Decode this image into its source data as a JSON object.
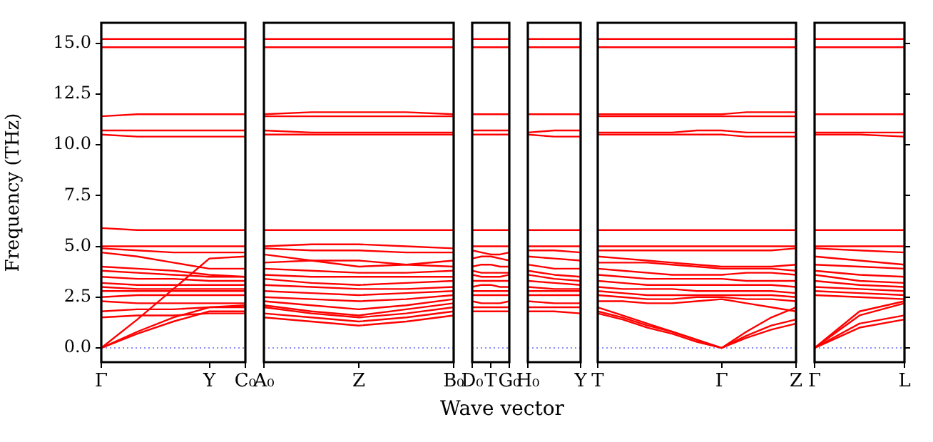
{
  "chart_data": [
    {
      "type": "line",
      "ylabel": "Frequency (THz)",
      "categories": [
        "Γ",
        null,
        null,
        "Y",
        "C₀"
      ],
      "ylim": [
        -0.7,
        16
      ],
      "yticks": [
        {
          "value": 0,
          "label": "0.0"
        },
        {
          "value": 2.5,
          "label": "2.5"
        },
        {
          "value": 5,
          "label": "5.0"
        },
        {
          "value": 7.5,
          "label": "7.5"
        },
        {
          "value": 10,
          "label": "10.0"
        },
        {
          "value": 12.5,
          "label": "12.5"
        },
        {
          "value": 15,
          "label": "15.0"
        }
      ],
      "marker": "none",
      "line_style": "solid",
      "ref_lines": [
        {
          "axis": "y",
          "value": 0,
          "color": "#6666ff",
          "line_style": "dotted"
        }
      ],
      "series": [
        {
          "color": "#ff0000",
          "values": [
            15.2,
            15.2,
            15.2,
            15.2,
            15.2
          ]
        },
        {
          "color": "#ff0000",
          "values": [
            14.8,
            14.8,
            14.8,
            14.8,
            14.8
          ]
        },
        {
          "color": "#ff0000",
          "values": [
            11.4,
            11.5,
            11.5,
            11.5,
            11.5
          ]
        },
        {
          "color": "#ff0000",
          "values": [
            10.7,
            10.7,
            10.7,
            10.7,
            10.7
          ]
        },
        {
          "color": "#ff0000",
          "values": [
            10.5,
            10.4,
            10.4,
            10.4,
            10.4
          ]
        },
        {
          "color": "#ff0000",
          "values": [
            5.9,
            5.8,
            5.8,
            5.8,
            5.8
          ]
        },
        {
          "color": "#ff0000",
          "values": [
            5.0,
            5.0,
            5.0,
            5.0,
            5.0
          ]
        },
        {
          "color": "#ff0000",
          "values": [
            4.9,
            4.8,
            4.7,
            4.7,
            4.7
          ]
        },
        {
          "color": "#ff0000",
          "values": [
            4.7,
            4.5,
            4.2,
            3.9,
            3.9
          ]
        },
        {
          "color": "#ff0000",
          "values": [
            4.0,
            3.9,
            3.8,
            3.6,
            3.5
          ]
        },
        {
          "color": "#ff0000",
          "values": [
            3.8,
            3.7,
            3.6,
            3.5,
            3.5
          ]
        },
        {
          "color": "#ff0000",
          "values": [
            3.5,
            3.4,
            3.4,
            3.3,
            3.3
          ]
        },
        {
          "color": "#ff0000",
          "values": [
            3.2,
            3.1,
            3.1,
            3.1,
            3.1
          ]
        },
        {
          "color": "#ff0000",
          "values": [
            3.0,
            2.9,
            2.9,
            2.9,
            2.9
          ]
        },
        {
          "color": "#ff0000",
          "values": [
            2.8,
            2.8,
            2.8,
            2.8,
            2.8
          ]
        },
        {
          "color": "#ff0000",
          "values": [
            2.5,
            2.6,
            2.6,
            2.6,
            2.6
          ]
        },
        {
          "color": "#ff0000",
          "values": [
            2.3,
            2.2,
            2.2,
            2.2,
            2.2
          ]
        },
        {
          "color": "#ff0000",
          "values": [
            1.8,
            1.9,
            1.9,
            2.0,
            2.0
          ]
        },
        {
          "color": "#ff0000",
          "values": [
            1.5,
            1.6,
            1.6,
            1.7,
            1.7
          ]
        },
        {
          "color": "#ff0000",
          "values": [
            0,
            0.7,
            1.3,
            1.8,
            1.8
          ]
        },
        {
          "color": "#ff0000",
          "values": [
            0,
            0.8,
            1.5,
            2.0,
            2.1
          ]
        },
        {
          "color": "#ff0000",
          "values": [
            0,
            1.4,
            2.9,
            4.4,
            4.5
          ]
        }
      ]
    },
    {
      "type": "line",
      "categories": [
        "A₀",
        null,
        "Z",
        null,
        "B₀"
      ],
      "ylim": [
        -0.7,
        16
      ],
      "tick_labels": "x",
      "marker": "none",
      "line_style": "solid",
      "ref_lines": [
        {
          "axis": "y",
          "value": 0,
          "color": "#6666ff",
          "line_style": "dotted"
        }
      ],
      "series": [
        {
          "color": "#ff0000",
          "values": [
            15.2,
            15.2,
            15.2,
            15.2,
            15.2
          ]
        },
        {
          "color": "#ff0000",
          "values": [
            14.8,
            14.8,
            14.8,
            14.8,
            14.8
          ]
        },
        {
          "color": "#ff0000",
          "values": [
            11.5,
            11.6,
            11.6,
            11.6,
            11.5
          ]
        },
        {
          "color": "#ff0000",
          "values": [
            11.4,
            11.4,
            11.4,
            11.4,
            11.4
          ]
        },
        {
          "color": "#ff0000",
          "values": [
            10.7,
            10.6,
            10.6,
            10.6,
            10.6
          ]
        },
        {
          "color": "#ff0000",
          "values": [
            10.5,
            10.5,
            10.5,
            10.5,
            10.5
          ]
        },
        {
          "color": "#ff0000",
          "values": [
            5.8,
            5.8,
            5.8,
            5.8,
            5.8
          ]
        },
        {
          "color": "#ff0000",
          "values": [
            5.0,
            5.1,
            5.1,
            5.0,
            4.9
          ]
        },
        {
          "color": "#ff0000",
          "values": [
            4.9,
            4.8,
            4.8,
            4.7,
            4.7
          ]
        },
        {
          "color": "#ff0000",
          "values": [
            4.6,
            4.3,
            4.0,
            4.1,
            4.3
          ]
        },
        {
          "color": "#ff0000",
          "values": [
            4.2,
            4.3,
            4.3,
            4.1,
            4.0
          ]
        },
        {
          "color": "#ff0000",
          "values": [
            3.9,
            3.8,
            3.7,
            3.7,
            3.8
          ]
        },
        {
          "color": "#ff0000",
          "values": [
            3.6,
            3.5,
            3.5,
            3.5,
            3.5
          ]
        },
        {
          "color": "#ff0000",
          "values": [
            3.4,
            3.2,
            3.1,
            3.2,
            3.3
          ]
        },
        {
          "color": "#ff0000",
          "values": [
            3.1,
            3.0,
            2.9,
            2.9,
            3.0
          ]
        },
        {
          "color": "#ff0000",
          "values": [
            2.8,
            2.7,
            2.6,
            2.7,
            2.8
          ]
        },
        {
          "color": "#ff0000",
          "values": [
            2.5,
            2.4,
            2.3,
            2.4,
            2.6
          ]
        },
        {
          "color": "#ff0000",
          "values": [
            2.3,
            2.1,
            1.9,
            2.1,
            2.4
          ]
        },
        {
          "color": "#ff0000",
          "values": [
            2.1,
            1.8,
            1.6,
            1.9,
            2.2
          ]
        },
        {
          "color": "#ff0000",
          "values": [
            2.0,
            1.7,
            1.5,
            1.7,
            2.0
          ]
        },
        {
          "color": "#ff0000",
          "values": [
            1.7,
            1.5,
            1.3,
            1.5,
            1.8
          ]
        },
        {
          "color": "#ff0000",
          "values": [
            1.5,
            1.3,
            1.1,
            1.3,
            1.6
          ]
        }
      ]
    },
    {
      "type": "line",
      "xlabel": "Wave vector",
      "categories": [
        "D₀",
        null,
        "T",
        null,
        "G₀"
      ],
      "ylim": [
        -0.7,
        16
      ],
      "tick_labels": "x",
      "marker": "none",
      "line_style": "solid",
      "ref_lines": [
        {
          "axis": "y",
          "value": 0,
          "color": "#6666ff",
          "line_style": "dotted"
        }
      ],
      "series": [
        {
          "color": "#ff0000",
          "values": [
            15.2,
            15.2,
            15.2,
            15.2,
            15.2
          ]
        },
        {
          "color": "#ff0000",
          "values": [
            14.8,
            14.8,
            14.8,
            14.8,
            14.8
          ]
        },
        {
          "color": "#ff0000",
          "values": [
            11.5,
            11.5,
            11.5,
            11.5,
            11.5
          ]
        },
        {
          "color": "#ff0000",
          "values": [
            10.7,
            10.7,
            10.7,
            10.7,
            10.7
          ]
        },
        {
          "color": "#ff0000",
          "values": [
            10.5,
            10.5,
            10.5,
            10.5,
            10.5
          ]
        },
        {
          "color": "#ff0000",
          "values": [
            5.8,
            5.8,
            5.8,
            5.8,
            5.8
          ]
        },
        {
          "color": "#ff0000",
          "values": [
            5.0,
            5.0,
            5.0,
            5.0,
            5.0
          ]
        },
        {
          "color": "#ff0000",
          "values": [
            4.8,
            4.7,
            4.6,
            4.6,
            4.7
          ]
        },
        {
          "color": "#ff0000",
          "values": [
            4.4,
            4.5,
            4.5,
            4.4,
            4.3
          ]
        },
        {
          "color": "#ff0000",
          "values": [
            4.0,
            4.1,
            4.1,
            4.0,
            4.0
          ]
        },
        {
          "color": "#ff0000",
          "values": [
            3.8,
            3.7,
            3.7,
            3.7,
            3.7
          ]
        },
        {
          "color": "#ff0000",
          "values": [
            3.6,
            3.5,
            3.5,
            3.5,
            3.6
          ]
        },
        {
          "color": "#ff0000",
          "values": [
            3.3,
            3.3,
            3.3,
            3.3,
            3.3
          ]
        },
        {
          "color": "#ff0000",
          "values": [
            3.0,
            3.1,
            3.1,
            3.0,
            3.0
          ]
        },
        {
          "color": "#ff0000",
          "values": [
            2.8,
            2.8,
            2.8,
            2.8,
            2.8
          ]
        },
        {
          "color": "#ff0000",
          "values": [
            2.6,
            2.6,
            2.6,
            2.6,
            2.6
          ]
        },
        {
          "color": "#ff0000",
          "values": [
            2.3,
            2.2,
            2.2,
            2.2,
            2.3
          ]
        },
        {
          "color": "#ff0000",
          "values": [
            2.0,
            2.0,
            2.0,
            2.0,
            2.0
          ]
        },
        {
          "color": "#ff0000",
          "values": [
            1.8,
            1.8,
            1.8,
            1.8,
            1.8
          ]
        }
      ]
    },
    {
      "type": "line",
      "categories": [
        "H₀",
        null,
        "Y"
      ],
      "ylim": [
        -0.7,
        16
      ],
      "tick_labels": "x",
      "marker": "none",
      "line_style": "solid",
      "ref_lines": [
        {
          "axis": "y",
          "value": 0,
          "color": "#6666ff",
          "line_style": "dotted"
        }
      ],
      "series": [
        {
          "color": "#ff0000",
          "values": [
            15.2,
            15.2,
            15.2
          ]
        },
        {
          "color": "#ff0000",
          "values": [
            14.8,
            14.8,
            14.8
          ]
        },
        {
          "color": "#ff0000",
          "values": [
            11.5,
            11.5,
            11.5
          ]
        },
        {
          "color": "#ff0000",
          "values": [
            10.6,
            10.7,
            10.7
          ]
        },
        {
          "color": "#ff0000",
          "values": [
            10.5,
            10.4,
            10.4
          ]
        },
        {
          "color": "#ff0000",
          "values": [
            5.8,
            5.8,
            5.8
          ]
        },
        {
          "color": "#ff0000",
          "values": [
            5.0,
            5.0,
            5.0
          ]
        },
        {
          "color": "#ff0000",
          "values": [
            4.8,
            4.8,
            4.7
          ]
        },
        {
          "color": "#ff0000",
          "values": [
            4.5,
            4.4,
            4.3
          ]
        },
        {
          "color": "#ff0000",
          "values": [
            4.1,
            3.9,
            3.9
          ]
        },
        {
          "color": "#ff0000",
          "values": [
            3.8,
            3.6,
            3.5
          ]
        },
        {
          "color": "#ff0000",
          "values": [
            3.6,
            3.4,
            3.3
          ]
        },
        {
          "color": "#ff0000",
          "values": [
            3.3,
            3.2,
            3.1
          ]
        },
        {
          "color": "#ff0000",
          "values": [
            3.0,
            2.9,
            2.9
          ]
        },
        {
          "color": "#ff0000",
          "values": [
            2.8,
            2.8,
            2.8
          ]
        },
        {
          "color": "#ff0000",
          "values": [
            2.6,
            2.6,
            2.6
          ]
        },
        {
          "color": "#ff0000",
          "values": [
            2.3,
            2.2,
            2.2
          ]
        },
        {
          "color": "#ff0000",
          "values": [
            2.0,
            2.0,
            2.0
          ]
        },
        {
          "color": "#ff0000",
          "values": [
            1.8,
            1.8,
            1.7
          ]
        }
      ]
    },
    {
      "type": "line",
      "categories": [
        "T",
        null,
        null,
        null,
        null,
        "Γ",
        null,
        null,
        "Z"
      ],
      "ylim": [
        -0.7,
        16
      ],
      "tick_labels": "x",
      "marker": "none",
      "line_style": "solid",
      "ref_lines": [
        {
          "axis": "y",
          "value": 0,
          "color": "#6666ff",
          "line_style": "dotted"
        }
      ],
      "series": [
        {
          "color": "#ff0000",
          "values": [
            15.2,
            15.2,
            15.2,
            15.2,
            15.2,
            15.2,
            15.2,
            15.2,
            15.2
          ]
        },
        {
          "color": "#ff0000",
          "values": [
            14.8,
            14.8,
            14.8,
            14.8,
            14.8,
            14.8,
            14.8,
            14.8,
            14.8
          ]
        },
        {
          "color": "#ff0000",
          "values": [
            11.5,
            11.5,
            11.5,
            11.5,
            11.5,
            11.5,
            11.6,
            11.6,
            11.6
          ]
        },
        {
          "color": "#ff0000",
          "values": [
            11.4,
            11.4,
            11.4,
            11.4,
            11.4,
            11.4,
            11.4,
            11.4,
            11.4
          ]
        },
        {
          "color": "#ff0000",
          "values": [
            10.6,
            10.6,
            10.6,
            10.6,
            10.7,
            10.7,
            10.6,
            10.6,
            10.6
          ]
        },
        {
          "color": "#ff0000",
          "values": [
            10.5,
            10.5,
            10.5,
            10.5,
            10.5,
            10.5,
            10.4,
            10.4,
            10.4
          ]
        },
        {
          "color": "#ff0000",
          "values": [
            5.8,
            5.8,
            5.8,
            5.8,
            5.8,
            5.8,
            5.8,
            5.8,
            5.8
          ]
        },
        {
          "color": "#ff0000",
          "values": [
            5.0,
            5.0,
            5.0,
            5.0,
            5.0,
            5.0,
            5.0,
            5.0,
            5.0
          ]
        },
        {
          "color": "#ff0000",
          "values": [
            4.8,
            4.8,
            4.8,
            4.8,
            4.8,
            4.8,
            4.8,
            4.8,
            4.9
          ]
        },
        {
          "color": "#ff0000",
          "values": [
            4.5,
            4.4,
            4.3,
            4.2,
            4.1,
            4.0,
            4.0,
            4.0,
            4.1
          ]
        },
        {
          "color": "#ff0000",
          "values": [
            4.2,
            4.2,
            4.2,
            4.1,
            4.0,
            3.9,
            3.9,
            3.9,
            3.8
          ]
        },
        {
          "color": "#ff0000",
          "values": [
            3.9,
            3.8,
            3.7,
            3.6,
            3.6,
            3.6,
            3.7,
            3.7,
            3.6
          ]
        },
        {
          "color": "#ff0000",
          "values": [
            3.6,
            3.5,
            3.4,
            3.4,
            3.4,
            3.4,
            3.3,
            3.3,
            3.3
          ]
        },
        {
          "color": "#ff0000",
          "values": [
            3.3,
            3.2,
            3.1,
            3.1,
            3.1,
            3.1,
            3.1,
            3.1,
            3.0
          ]
        },
        {
          "color": "#ff0000",
          "values": [
            3.0,
            2.9,
            2.9,
            2.9,
            2.8,
            2.8,
            2.8,
            2.8,
            2.7
          ]
        },
        {
          "color": "#ff0000",
          "values": [
            2.8,
            2.7,
            2.6,
            2.6,
            2.6,
            2.6,
            2.6,
            2.6,
            2.5
          ]
        },
        {
          "color": "#ff0000",
          "values": [
            2.6,
            2.5,
            2.4,
            2.4,
            2.5,
            2.5,
            2.4,
            2.4,
            2.3
          ]
        },
        {
          "color": "#ff0000",
          "values": [
            2.3,
            2.3,
            2.2,
            2.2,
            2.3,
            2.4,
            2.2,
            2.0,
            1.8
          ]
        },
        {
          "color": "#ff0000",
          "values": [
            2.0,
            1.6,
            1.2,
            0.8,
            0.4,
            0,
            0.5,
            0.9,
            1.2
          ]
        },
        {
          "color": "#ff0000",
          "values": [
            1.8,
            1.5,
            1.1,
            0.8,
            0.4,
            0,
            0.6,
            1.1,
            1.4
          ]
        },
        {
          "color": "#ff0000",
          "values": [
            1.7,
            1.4,
            1.0,
            0.7,
            0.3,
            0,
            0.8,
            1.5,
            2.0
          ]
        }
      ]
    },
    {
      "type": "line",
      "categories": [
        "Γ",
        null,
        "L"
      ],
      "ylim": [
        -0.7,
        16
      ],
      "yticks": [
        {
          "value": 0,
          "label": null
        },
        {
          "value": 2.5,
          "label": null
        },
        {
          "value": 5,
          "label": null
        },
        {
          "value": 7.5,
          "label": null
        },
        {
          "value": 10,
          "label": null
        },
        {
          "value": 12.5,
          "label": null
        },
        {
          "value": 15,
          "label": null
        }
      ],
      "tick_labels": "x",
      "marker": "none",
      "line_style": "solid",
      "ref_lines": [
        {
          "axis": "y",
          "value": 0,
          "color": "#6666ff",
          "line_style": "dotted"
        }
      ],
      "series": [
        {
          "color": "#ff0000",
          "values": [
            15.2,
            15.2,
            15.2
          ]
        },
        {
          "color": "#ff0000",
          "values": [
            14.8,
            14.8,
            14.8
          ]
        },
        {
          "color": "#ff0000",
          "values": [
            11.5,
            11.5,
            11.5
          ]
        },
        {
          "color": "#ff0000",
          "values": [
            10.6,
            10.6,
            10.6
          ]
        },
        {
          "color": "#ff0000",
          "values": [
            10.5,
            10.5,
            10.4
          ]
        },
        {
          "color": "#ff0000",
          "values": [
            5.8,
            5.8,
            5.8
          ]
        },
        {
          "color": "#ff0000",
          "values": [
            5.0,
            5.0,
            5.0
          ]
        },
        {
          "color": "#ff0000",
          "values": [
            4.9,
            4.8,
            4.7
          ]
        },
        {
          "color": "#ff0000",
          "values": [
            4.5,
            4.3,
            4.1
          ]
        },
        {
          "color": "#ff0000",
          "values": [
            4.1,
            4.0,
            3.9
          ]
        },
        {
          "color": "#ff0000",
          "values": [
            3.8,
            3.6,
            3.5
          ]
        },
        {
          "color": "#ff0000",
          "values": [
            3.6,
            3.3,
            3.2
          ]
        },
        {
          "color": "#ff0000",
          "values": [
            3.3,
            3.1,
            3.0
          ]
        },
        {
          "color": "#ff0000",
          "values": [
            3.0,
            2.9,
            2.8
          ]
        },
        {
          "color": "#ff0000",
          "values": [
            2.8,
            2.7,
            2.6
          ]
        },
        {
          "color": "#ff0000",
          "values": [
            2.6,
            2.5,
            2.4
          ]
        },
        {
          "color": "#ff0000",
          "values": [
            0,
            1.0,
            1.4
          ]
        },
        {
          "color": "#ff0000",
          "values": [
            0,
            1.2,
            1.6
          ]
        },
        {
          "color": "#ff0000",
          "values": [
            0,
            1.6,
            2.2
          ]
        },
        {
          "color": "#ff0000",
          "values": [
            0,
            1.8,
            2.3
          ]
        }
      ]
    }
  ]
}
